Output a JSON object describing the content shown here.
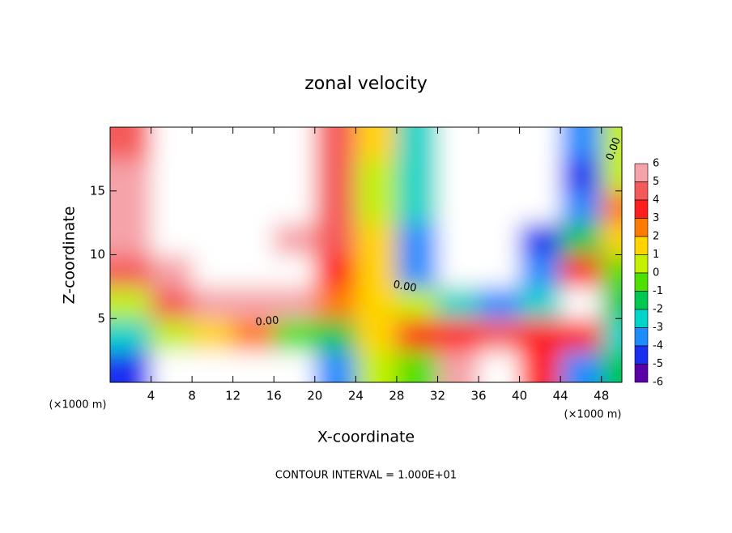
{
  "chart_data": {
    "type": "contour",
    "title": "zonal velocity",
    "x_label": "X-coordinate",
    "y_label": "Z-coordinate",
    "x_unit_left": "(×1000 m)",
    "x_unit_right": "(×1000 m)",
    "footnote": "CONTOUR INTERVAL = 1.000E+01",
    "contour_labels": [
      "0.00",
      "0.00",
      "0.00"
    ],
    "xlim": [
      0,
      50
    ],
    "ylim": [
      0,
      20
    ],
    "xticks": [
      4,
      8,
      12,
      16,
      20,
      24,
      28,
      32,
      36,
      40,
      44,
      48
    ],
    "yticks": [
      5,
      10,
      15
    ],
    "x": [
      2,
      6,
      10,
      14,
      18,
      22,
      26,
      30,
      34,
      38,
      42,
      46,
      50
    ],
    "y": [
      1.25,
      3.75,
      6.25,
      8.75,
      11.25,
      13.75,
      16.25,
      18.75
    ],
    "z": [
      [
        -5,
        -8,
        -8,
        -8,
        -8,
        -4,
        0,
        -1,
        5,
        8,
        3,
        -4,
        -2
      ],
      [
        -3,
        0,
        1,
        2,
        -1,
        -2,
        1.5,
        3,
        3.5,
        4,
        3,
        3,
        -3
      ],
      [
        0,
        4,
        5,
        6,
        5,
        2.5,
        1.5,
        0,
        -3,
        -4,
        -3,
        8,
        -2
      ],
      [
        4,
        6,
        8,
        8,
        7,
        3.5,
        1,
        -4,
        -8,
        -8,
        -4,
        3,
        -1
      ],
      [
        6,
        8,
        8,
        8,
        6,
        4,
        1,
        -3.5,
        -8,
        -8,
        -5,
        -2,
        1
      ],
      [
        5.5,
        8,
        8,
        8,
        7,
        4,
        0.5,
        -3,
        -8,
        -8,
        -8,
        -4,
        2
      ],
      [
        5.5,
        8,
        8,
        8,
        8,
        4,
        0.5,
        -3,
        -8,
        -8,
        -8,
        -5,
        0.5
      ],
      [
        4,
        8,
        8,
        8,
        8,
        4,
        1,
        -3,
        -8,
        -8,
        -8,
        -4,
        0
      ]
    ],
    "colorbar": {
      "ticks": [
        6,
        5,
        4,
        3,
        2,
        1,
        0,
        -1,
        -2,
        -3,
        -4,
        -5,
        -6
      ],
      "colors": [
        "#f5a3a8",
        "#f55a5a",
        "#ff1e1e",
        "#ff7a00",
        "#ffd400",
        "#c4f000",
        "#4ee000",
        "#00c850",
        "#00d4c8",
        "#1c8cff",
        "#1a2ff0",
        "#5a00a8"
      ]
    }
  }
}
